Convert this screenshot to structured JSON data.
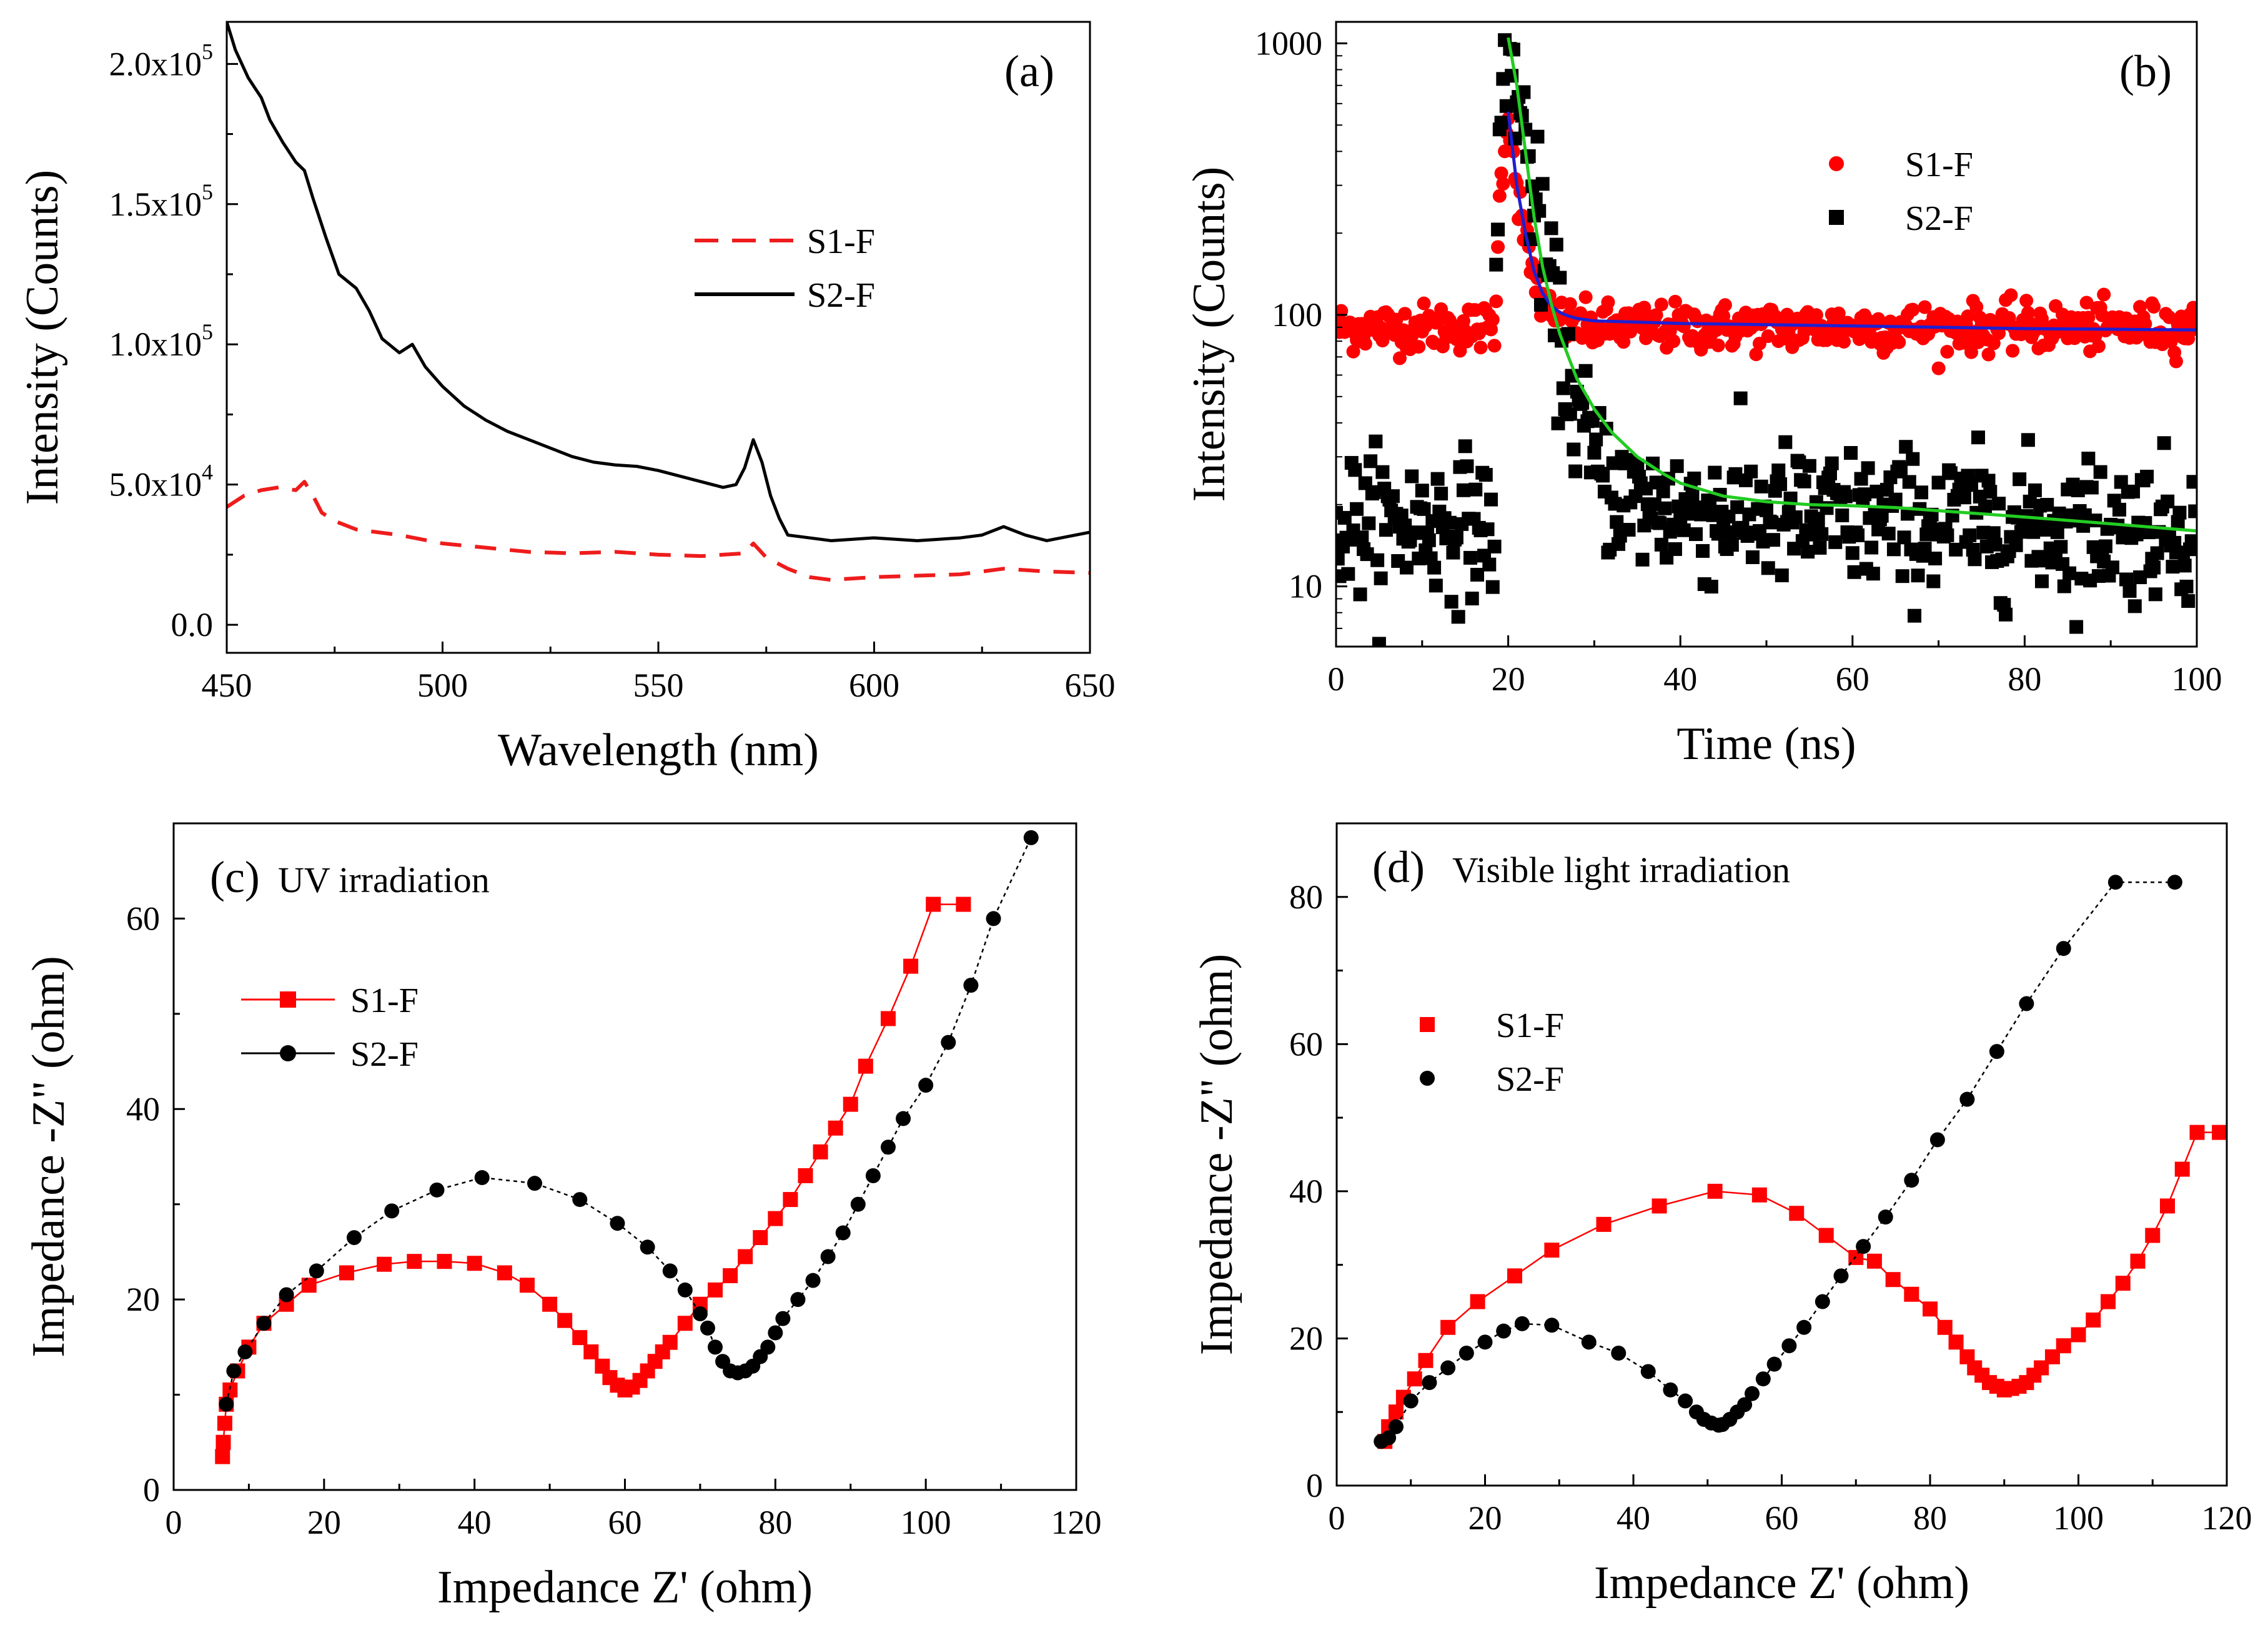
{
  "figure": {
    "panels": [
      {
        "id": "a",
        "panel_label": "(a)",
        "annotation": "",
        "xlabel": "Wavelength (nm)",
        "ylabel": "Intensity (Counts)",
        "xlim": [
          450,
          650
        ],
        "ylim": [
          -10000,
          215000
        ],
        "yscale": "linear",
        "xticks": [
          450,
          500,
          550,
          600,
          650
        ],
        "xtick_labels": [
          "450",
          "500",
          "550",
          "600",
          "650"
        ],
        "yticks": [
          0,
          50000,
          100000,
          150000,
          200000
        ],
        "ytick_labels": [
          [
            "0.0",
            ""
          ],
          [
            "5.0x10",
            "4"
          ],
          [
            "1.0x10",
            "5"
          ],
          [
            "1.5x10",
            "5"
          ],
          [
            "2.0x10",
            "5"
          ]
        ]
      },
      {
        "id": "b",
        "panel_label": "(b)",
        "annotation": "",
        "xlabel": "Time (ns)",
        "ylabel": "Intensity (Counts)",
        "xlim": [
          0,
          100
        ],
        "ylim": [
          6,
          1200
        ],
        "yscale": "log",
        "xticks": [
          0,
          20,
          40,
          60,
          80,
          100
        ],
        "xtick_labels": [
          "0",
          "20",
          "40",
          "60",
          "80",
          "100"
        ],
        "yticks": [
          10,
          100,
          1000
        ],
        "ytick_labels": [
          [
            "10",
            ""
          ],
          [
            "100",
            ""
          ],
          [
            "1000",
            ""
          ]
        ]
      },
      {
        "id": "c",
        "panel_label": "(c)",
        "annotation": "UV irradiation",
        "xlabel": "Impedance Z' (ohm)",
        "ylabel": "Impedance -Z\" (ohm)",
        "xlim": [
          0,
          120
        ],
        "ylim": [
          0,
          70
        ],
        "yscale": "linear",
        "xticks": [
          0,
          20,
          40,
          60,
          80,
          100,
          120
        ],
        "xtick_labels": [
          "0",
          "20",
          "40",
          "60",
          "80",
          "100",
          "120"
        ],
        "yticks": [
          0,
          20,
          40,
          60
        ],
        "ytick_labels": [
          [
            "0",
            ""
          ],
          [
            "20",
            ""
          ],
          [
            "40",
            ""
          ],
          [
            "60",
            ""
          ]
        ]
      },
      {
        "id": "d",
        "panel_label": "(d)",
        "annotation": "Visible light irradiation",
        "xlabel": "Impedance Z' (ohm)",
        "ylabel": "Impedance -Z\" (ohm)",
        "xlim": [
          0,
          120
        ],
        "ylim": [
          0,
          90
        ],
        "yscale": "linear",
        "xticks": [
          0,
          20,
          40,
          60,
          80,
          100,
          120
        ],
        "xtick_labels": [
          "0",
          "20",
          "40",
          "60",
          "80",
          "100",
          "120"
        ],
        "yticks": [
          0,
          20,
          40,
          60,
          80
        ],
        "ytick_labels": [
          [
            "0",
            ""
          ],
          [
            "20",
            ""
          ],
          [
            "40",
            ""
          ],
          [
            "60",
            ""
          ],
          [
            "80",
            ""
          ]
        ]
      }
    ]
  },
  "chart_data": [
    {
      "panel": "a",
      "type": "line",
      "title": "(a)",
      "xlabel": "Wavelength (nm)",
      "ylabel": "Intensity (Counts)",
      "xlim": [
        450,
        650
      ],
      "ylim": [
        -10000,
        215000
      ],
      "legend_position": "center-right",
      "series": [
        {
          "name": "S1-F",
          "style": "dashed line",
          "color": "#ee1c1c",
          "x": [
            450,
            454,
            458,
            462,
            466,
            468,
            470,
            472,
            475,
            480,
            490,
            500,
            510,
            520,
            530,
            540,
            550,
            560,
            565,
            570,
            572,
            575,
            580,
            585,
            590,
            600,
            610,
            620,
            630,
            640,
            650
          ],
          "y": [
            42000,
            46000,
            48000,
            49000,
            48000,
            51000,
            46000,
            40000,
            37000,
            34000,
            32000,
            29000,
            27500,
            26000,
            25500,
            26000,
            25000,
            24500,
            25000,
            25500,
            29000,
            24000,
            20000,
            17000,
            16000,
            17000,
            17500,
            18000,
            20000,
            19000,
            18500
          ]
        },
        {
          "name": "S2-F",
          "style": "solid line",
          "color": "#000000",
          "x": [
            450,
            452,
            455,
            458,
            460,
            463,
            466,
            468,
            470,
            473,
            476,
            480,
            483,
            486,
            490,
            493,
            496,
            500,
            505,
            510,
            515,
            520,
            525,
            530,
            535,
            540,
            545,
            550,
            555,
            560,
            565,
            568,
            570,
            572,
            574,
            576,
            578,
            580,
            585,
            590,
            595,
            600,
            605,
            610,
            615,
            620,
            625,
            630,
            635,
            640,
            645,
            650
          ],
          "y": [
            215000,
            205000,
            195000,
            188000,
            180000,
            172000,
            165000,
            162000,
            152000,
            138000,
            125000,
            120000,
            112000,
            102000,
            97000,
            100000,
            92000,
            85000,
            78000,
            73000,
            69000,
            66000,
            63000,
            60000,
            58000,
            57000,
            56500,
            55000,
            53000,
            51000,
            49000,
            50000,
            56000,
            66000,
            58000,
            46000,
            38000,
            32000,
            31000,
            30000,
            30500,
            31000,
            30500,
            30000,
            30500,
            31000,
            32000,
            35000,
            32000,
            30000,
            31500,
            33000
          ]
        }
      ]
    },
    {
      "panel": "b",
      "type": "scatter",
      "title": "(b)",
      "xlabel": "Time (ns)",
      "ylabel": "Intensity (Counts)",
      "xlim": [
        0,
        100
      ],
      "ylim": [
        6,
        1200
      ],
      "yscale": "log",
      "legend_position": "top-right",
      "series": [
        {
          "name": "S1-F",
          "marker": "circle",
          "color": "#ff0000",
          "description": "noisy decay data: baseline ~90 counts before 18.5 ns, rise to ~560 at 20 ns, decays back to ~95 counts by ~28 ns",
          "baseline": 90,
          "baseline_end": 18.5,
          "peak_time": 20,
          "peak": 560,
          "noise": 0.1
        },
        {
          "name": "S2-F",
          "marker": "square",
          "color": "#000000",
          "description": "noisy decay data: baseline ~17 counts before 18.5 ns, rise to ~1050 at 20 ns, decays to ~18 counts",
          "baseline": 17,
          "baseline_end": 18.5,
          "peak_time": 20,
          "peak": 1050,
          "noise": 0.3
        }
      ],
      "fits": [
        {
          "name": "S1-F fit",
          "color": "#1f1fd0",
          "x": [
            20,
            21,
            22,
            23,
            24,
            25,
            26,
            27,
            28,
            30,
            35,
            40,
            50,
            60,
            70,
            80,
            90,
            100
          ],
          "y": [
            560,
            300,
            200,
            145,
            120,
            108,
            102,
            99,
            97,
            95,
            94,
            93,
            92,
            91,
            90,
            89,
            88.5,
            88
          ]
        },
        {
          "name": "S2-F fit",
          "color": "#22cc22",
          "x": [
            20,
            21,
            22,
            23,
            24,
            25,
            26,
            27,
            28,
            30,
            32,
            35,
            38,
            40,
            45,
            50,
            55,
            60,
            65,
            70,
            75,
            80,
            85,
            90,
            95,
            100
          ],
          "y": [
            1050,
            700,
            400,
            230,
            150,
            110,
            85,
            70,
            58,
            45,
            37,
            30,
            26,
            24,
            21.5,
            20.5,
            20,
            19.8,
            19.5,
            19,
            18.5,
            18,
            17.5,
            17,
            16.5,
            16
          ]
        }
      ]
    },
    {
      "panel": "c",
      "type": "scatter",
      "title": "(c) UV irradiation",
      "xlabel": "Impedance Z' (ohm)",
      "ylabel": "Impedance -Z\" (ohm)",
      "xlim": [
        0,
        120
      ],
      "ylim": [
        0,
        70
      ],
      "legend_position": "left",
      "series": [
        {
          "name": "S1-F",
          "marker": "square",
          "line": true,
          "color": "#ff0000",
          "x": [
            6.5,
            6.6,
            6.8,
            7.0,
            7.5,
            8.5,
            10,
            12,
            15,
            18,
            23,
            28,
            32,
            36,
            40,
            44,
            47,
            50,
            52,
            54,
            55.5,
            57,
            58,
            59,
            60,
            61,
            62,
            63,
            64,
            65,
            66,
            68,
            70,
            72,
            74,
            76,
            78,
            80,
            82,
            84,
            86,
            88,
            90,
            92,
            95,
            98,
            101,
            105
          ],
          "y": [
            3.5,
            5,
            7,
            9,
            10.5,
            12.5,
            15,
            17.5,
            19.5,
            21.5,
            22.8,
            23.7,
            24,
            24,
            23.8,
            22.8,
            21.5,
            19.5,
            17.8,
            16,
            14.5,
            13,
            11.8,
            11,
            10.5,
            10.8,
            11.5,
            12.5,
            13.5,
            14.5,
            15.5,
            17.5,
            19.5,
            21,
            22.5,
            24.5,
            26.5,
            28.5,
            30.5,
            33,
            35.5,
            38,
            40.5,
            44.5,
            49.5,
            55,
            61.5,
            61.5
          ]
        },
        {
          "name": "S2-F",
          "marker": "circle",
          "line": true,
          "color": "#000000",
          "x": [
            7,
            8,
            9.5,
            12,
            15,
            19,
            24,
            29,
            35,
            41,
            48,
            54,
            59,
            63,
            66,
            68,
            70,
            71,
            72,
            73,
            74,
            75,
            76,
            77,
            78,
            79,
            80,
            81,
            83,
            85,
            87,
            89,
            91,
            93,
            95,
            97,
            100,
            103,
            106,
            109,
            114
          ],
          "y": [
            9,
            12.5,
            14.5,
            17.5,
            20.5,
            23,
            26.5,
            29.3,
            31.5,
            32.8,
            32.2,
            30.5,
            28,
            25.5,
            23,
            21,
            18.5,
            17,
            15,
            13.5,
            12.5,
            12.3,
            12.5,
            13,
            14,
            15,
            16.5,
            18,
            20,
            22,
            24.5,
            27,
            30,
            33,
            36,
            39,
            42.5,
            47,
            53,
            60,
            68.5
          ]
        }
      ]
    },
    {
      "panel": "d",
      "type": "scatter",
      "title": "(d) Visible light irradiation",
      "xlabel": "Impedance Z' (ohm)",
      "ylabel": "Impedance -Z\" (ohm)",
      "xlim": [
        0,
        120
      ],
      "ylim": [
        0,
        90
      ],
      "legend_position": "left",
      "series": [
        {
          "name": "S1-F",
          "marker": "square",
          "line": true,
          "color": "#ff0000",
          "x": [
            6.5,
            7,
            8,
            9,
            10.5,
            12,
            15,
            19,
            24,
            29,
            36,
            43.5,
            51,
            57,
            62,
            66,
            70,
            72.5,
            75,
            77.5,
            80,
            82,
            83.5,
            85,
            86,
            87,
            88,
            89,
            90,
            91,
            92,
            93,
            94,
            95,
            96.5,
            98,
            100,
            102,
            104,
            106,
            108,
            110,
            112,
            114,
            116,
            119
          ],
          "y": [
            6,
            8,
            10,
            12,
            14.5,
            17,
            21.5,
            25,
            28.5,
            32,
            35.5,
            38,
            40,
            39.5,
            37,
            34,
            31,
            30.5,
            28,
            26,
            24,
            21.5,
            19.5,
            17.5,
            16,
            15,
            14,
            13.5,
            13,
            13.2,
            13.5,
            14,
            15,
            16,
            17.5,
            19,
            20.5,
            22.5,
            25,
            27.5,
            30.5,
            34,
            38,
            43,
            48,
            48
          ]
        },
        {
          "name": "S2-F",
          "marker": "circle",
          "line": true,
          "color": "#000000",
          "x": [
            6,
            7,
            8,
            10,
            12.5,
            15,
            17.5,
            20,
            22.5,
            25,
            29,
            34,
            38,
            42,
            45,
            47,
            48.5,
            49.5,
            50.5,
            51.5,
            52,
            53,
            54,
            55,
            56,
            57.5,
            59,
            61,
            63,
            65.5,
            68,
            71,
            74,
            77.5,
            81,
            85,
            89,
            93,
            98,
            105,
            113
          ],
          "y": [
            6,
            6.5,
            8,
            11.5,
            14,
            16,
            18,
            19.5,
            21,
            22,
            21.8,
            19.5,
            18,
            15.5,
            13,
            11.5,
            10,
            9,
            8.5,
            8.2,
            8.3,
            9,
            10,
            11,
            12.5,
            14.5,
            16.5,
            19,
            21.5,
            25,
            28.5,
            32.5,
            36.5,
            41.5,
            47,
            52.5,
            59,
            65.5,
            73,
            82,
            82
          ]
        }
      ]
    }
  ]
}
